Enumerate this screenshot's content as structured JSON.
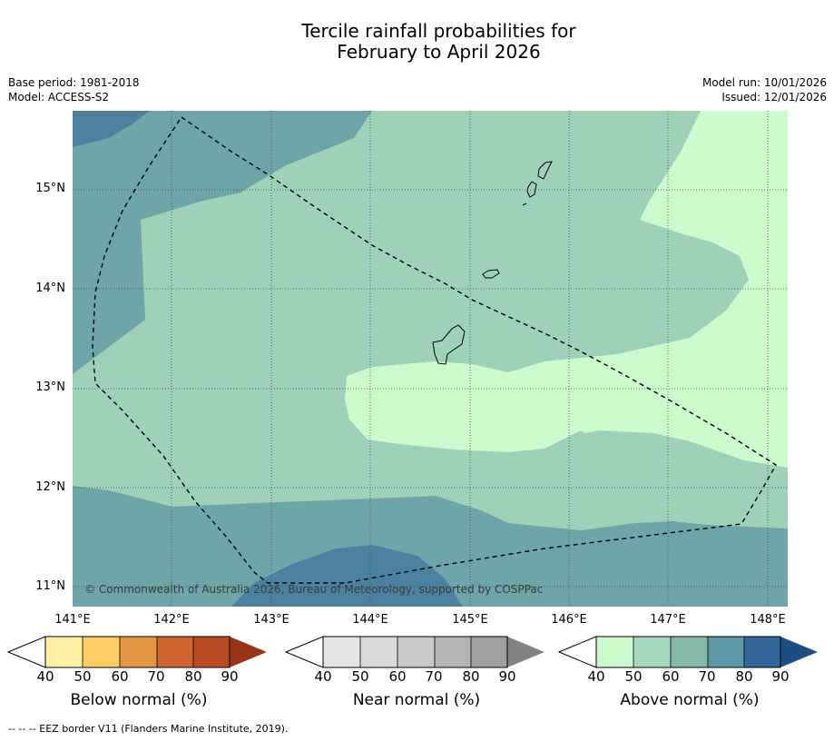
{
  "title": {
    "line1": "Tercile rainfall probabilities for",
    "line2": "February to April 2026"
  },
  "meta": {
    "base_period": "Base period: 1981-2018",
    "model": "Model: ACCESS-S2",
    "model_run": "Model run: 10/01/2026",
    "issued": "Issued: 12/01/2026"
  },
  "map": {
    "copyright": "© Commonwealth of Australia 2026, Bureau of Meteorology, supported by COSPPac",
    "lat_labels": [
      "15°N",
      "14°N",
      "13°N",
      "12°N",
      "11°N"
    ],
    "lon_labels": [
      "141°E",
      "142°E",
      "143°E",
      "144°E",
      "145°E",
      "146°E",
      "147°E",
      "148°E"
    ],
    "features": [
      "Guam",
      "Rota",
      "Tinian",
      "Saipan"
    ]
  },
  "legend": {
    "below": {
      "label": "Below normal (%)",
      "colors": [
        "#fff0a6",
        "#fdcc65",
        "#e39744",
        "#d06431",
        "#b84a26",
        "#9a3418"
      ]
    },
    "near": {
      "label": "Near normal (%)",
      "colors": [
        "#e5e5e5",
        "#d9d9d9",
        "#c9c9c9",
        "#b4b4b4",
        "#a0a0a0",
        "#828282"
      ]
    },
    "above": {
      "label": "Above normal (%)",
      "colors": [
        "#ccfacc",
        "#a6d8bd",
        "#86b8aa",
        "#5b97a5",
        "#336699",
        "#1a4f86"
      ]
    },
    "ticks": [
      "40",
      "50",
      "60",
      "70",
      "80",
      "90"
    ]
  },
  "footer": "--  --  -- EEZ border V11 (Flanders Marine Institute, 2019)."
}
